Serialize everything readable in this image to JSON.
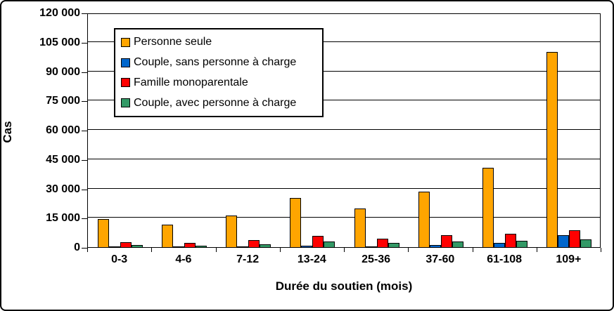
{
  "figure": {
    "background": "#FFFFFF",
    "border_color": "#000000"
  },
  "chart_data": {
    "type": "bar",
    "title": "",
    "xlabel": "Durée du soutien (mois)",
    "ylabel": "Cas",
    "ylim": [
      0,
      120000
    ],
    "ytick_step": 15000,
    "ytick_labels": [
      "0",
      "15 000",
      "30 000",
      "45 000",
      "60 000",
      "75 000",
      "90 000",
      "105 000",
      "120 000"
    ],
    "grid": true,
    "legend_position": "inside-top-left",
    "categories": [
      "0-3",
      "4-6",
      "7-12",
      "13-24",
      "25-36",
      "37-60",
      "61-108",
      "109+"
    ],
    "series": [
      {
        "name": "Personne seule",
        "color": "#FFA500",
        "values": [
          14500,
          11500,
          16300,
          25200,
          19800,
          28300,
          40500,
          99900
        ]
      },
      {
        "name": "Couple, sans personne à charge",
        "color": "#0066CC",
        "values": [
          300,
          250,
          500,
          600,
          500,
          1000,
          2000,
          6000
        ]
      },
      {
        "name": "Famille monoparentale",
        "color": "#FF0000",
        "values": [
          2600,
          2300,
          3500,
          5800,
          4300,
          6100,
          7000,
          8800
        ]
      },
      {
        "name": "Couple, avec personne à charge",
        "color": "#339966",
        "values": [
          1100,
          900,
          1500,
          3000,
          2100,
          2800,
          3200,
          3900
        ]
      }
    ]
  }
}
